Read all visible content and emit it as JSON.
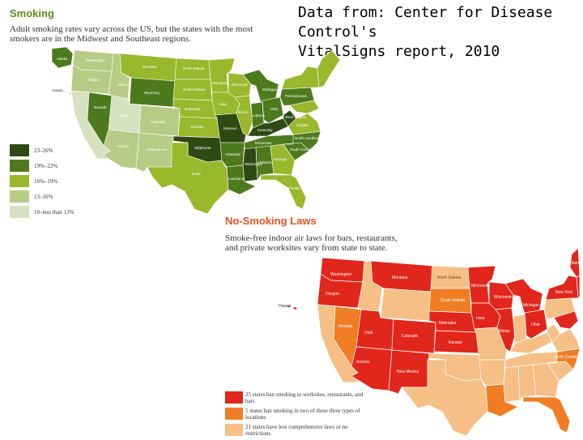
{
  "source_note": {
    "line1": "Data from: Center for Disease Control's",
    "line2": "VitalSigns report, 2010"
  },
  "smoking": {
    "title": "Smoking",
    "subtitle_line1": "Adult smoking rates vary across the US, but the states with the most",
    "subtitle_line2": "smokers are in the Midwest and Southeast regions.",
    "legend": [
      {
        "label": "23–26%",
        "color": "#2e4a14"
      },
      {
        "label": "19%–22%",
        "color": "#4e7a1e"
      },
      {
        "label": "16%–19%",
        "color": "#9ab82c"
      },
      {
        "label": "13–16%",
        "color": "#b8cb86"
      },
      {
        "label": "10–less than 13%",
        "color": "#d7e1bf"
      }
    ],
    "states": {
      "alaska": "Alaska",
      "hawaii": "Hawaii",
      "washington": "Washington",
      "oregon": "Oregon",
      "nevada": "Nevada",
      "idaho": "Idaho",
      "montana": "Montana",
      "wyoming": "Wyoming",
      "utah": "Utah",
      "colorado": "Colorado",
      "arizona": "Arizona",
      "new_mexico": "New Mexico",
      "north_dakota": "North Dakota",
      "south_dakota": "South Dakota",
      "nebraska": "Nebraska",
      "kansas": "Kansas",
      "oklahoma": "Oklahoma",
      "texas": "Texas",
      "minnesota": "Minnesota",
      "iowa": "Iowa",
      "missouri": "Missouri",
      "arkansas": "Arkansas",
      "louisiana": "Louisiana",
      "wisconsin": "Wisconsin",
      "illinois": "Illinois",
      "michigan": "Michigan",
      "indiana": "Indiana",
      "ohio": "Ohio",
      "kentucky": "Kentucky",
      "tennessee": "Tennessee",
      "mississippi": "Mississippi",
      "alabama": "Alabama",
      "georgia": "Georgia",
      "florida": "Florida",
      "south_carolina": "South Carolina",
      "north_carolina": "North Carolina",
      "virginia": "Virginia",
      "west_virginia": "West Virginia",
      "pennsylvania": "Pennsylvania"
    }
  },
  "laws": {
    "title": "No-Smoking Laws",
    "subtitle_line1": "Smoke-free indoor air laws for bars, restaurants,",
    "subtitle_line2": "and private worksites vary from state to state.",
    "legend": [
      {
        "label": "25 states ban smoking in worksites, restaurants, and bars",
        "color": "#e1261c"
      },
      {
        "label": "5 states ban smoking in two of these three types of locations",
        "color": "#f07d24"
      },
      {
        "label": "21 states have less comprehensive laws or no restrictions",
        "color": "#f6bf86"
      }
    ],
    "states": {
      "hawaii": "Hawaii",
      "washington": "Washington",
      "oregon": "Oregon",
      "montana": "Montana",
      "nevada": "Nevada",
      "utah": "Utah",
      "colorado": "Colorado",
      "arizona": "Arizona",
      "new_mexico": "New Mexico",
      "north_dakota": "North Dakota",
      "south_dakota": "South Dakota",
      "nebraska": "Nebraska",
      "kansas": "Kansas",
      "minnesota": "Minnesota",
      "wisconsin": "Wisconsin",
      "iowa": "Iowa",
      "illinois": "Illinois",
      "michigan": "Michigan",
      "ohio": "Ohio",
      "north_carolina": "North Carolina",
      "new_york": "New York",
      "maine": "Maine"
    }
  }
}
